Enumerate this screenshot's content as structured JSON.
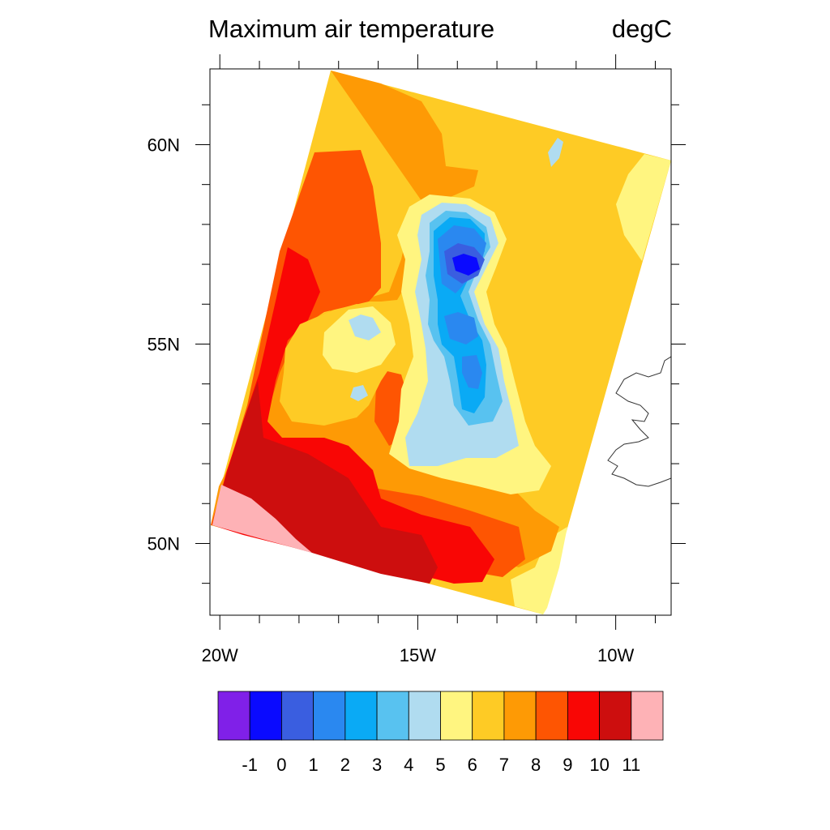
{
  "chart_data": {
    "type": "heatmap",
    "title": "Maximum air temperature",
    "units": "degC",
    "x_axis": {
      "ticks": [
        {
          "value": -20,
          "label": "20W"
        },
        {
          "value": -15,
          "label": "15W"
        },
        {
          "value": -10,
          "label": "10W"
        }
      ],
      "range": [
        -20.25,
        -8.6
      ]
    },
    "y_axis": {
      "ticks": [
        {
          "value": 50,
          "label": "50N"
        },
        {
          "value": 55,
          "label": "55N"
        },
        {
          "value": 60,
          "label": "60N"
        }
      ],
      "range": [
        48.2,
        61.9
      ]
    },
    "colorbar": {
      "labels": [
        "-1",
        "0",
        "1",
        "2",
        "3",
        "4",
        "5",
        "6",
        "7",
        "8",
        "9",
        "10",
        "11"
      ],
      "colors": [
        "#8020e8",
        "#0a0aff",
        "#3a5ee0",
        "#2a88f0",
        "#0aaaf5",
        "#58c2f0",
        "#b0dcf0",
        "#fff580",
        "#fecb25",
        "#fe9a05",
        "#fe5502",
        "#f90605",
        "#cd0e0e",
        "#feb2b6"
      ]
    },
    "field_colors": {
      "very_warm": "#cd0e0e",
      "warm": "#f90605",
      "orange_red": "#fe5502",
      "orange": "#fe9a05",
      "gold": "#fecb25",
      "pale_yellow": "#fff580",
      "pale_blue": "#b0dcf0",
      "light_blue": "#58c2f0",
      "sky": "#0aaaf5",
      "blue": "#2a88f0",
      "royal": "#3a5ee0",
      "pure_blue": "#0a0aff",
      "pink": "#feb2b6"
    }
  }
}
